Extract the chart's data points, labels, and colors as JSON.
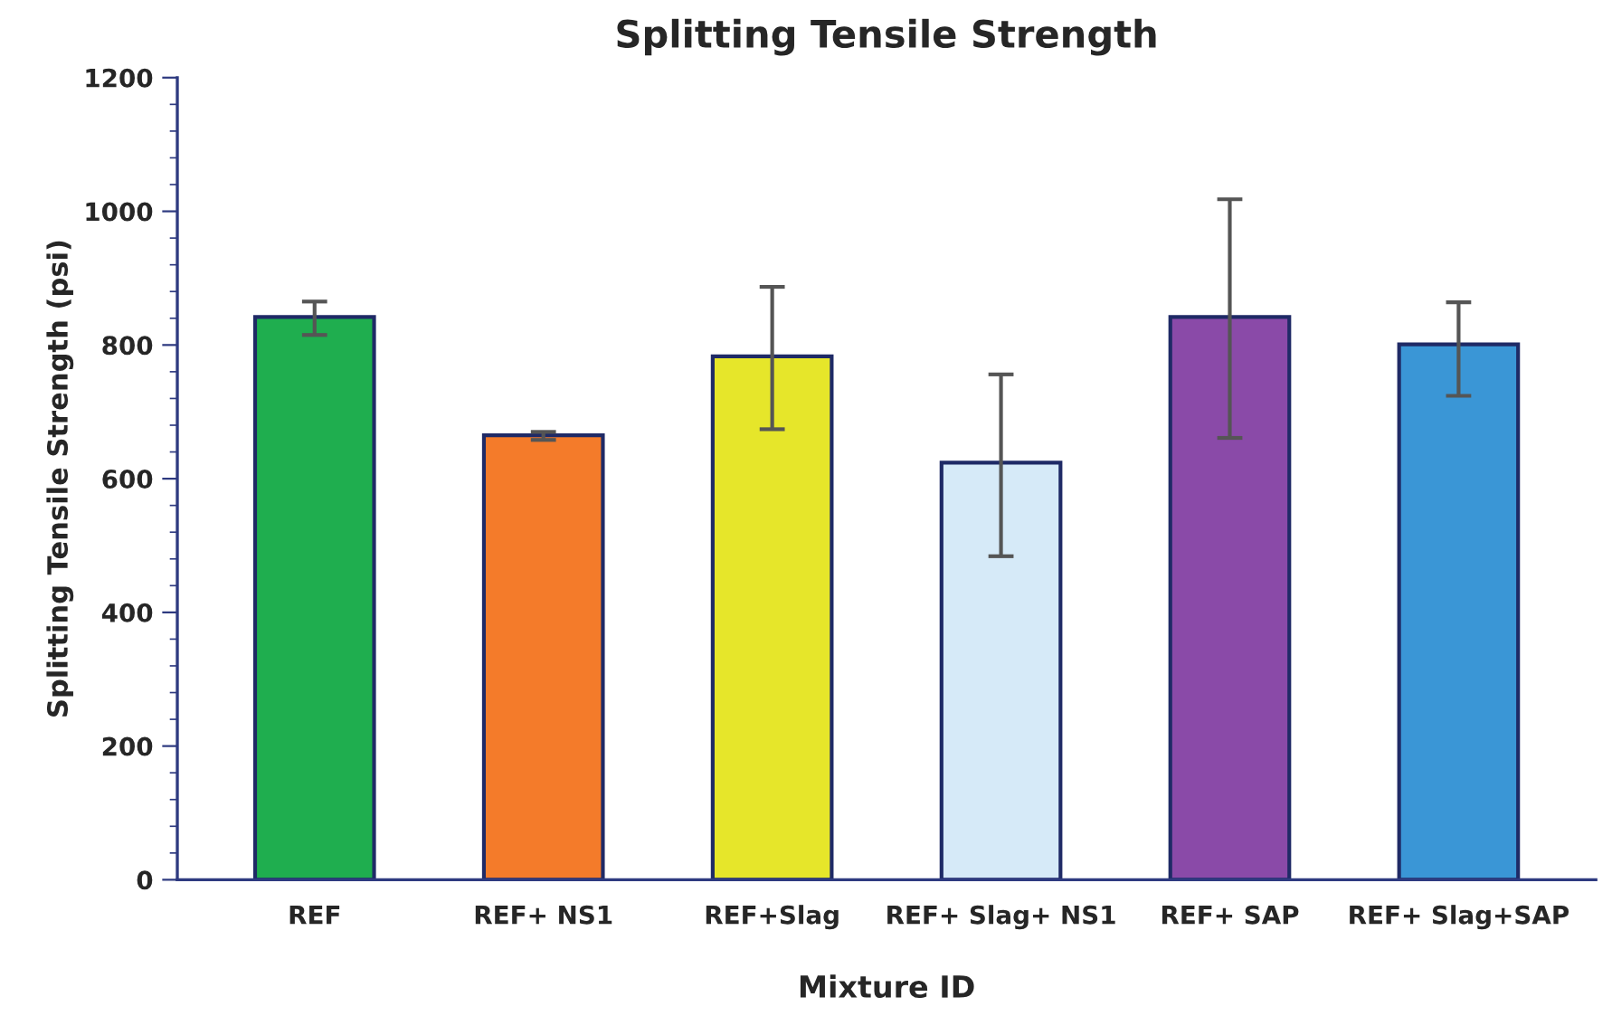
{
  "chart_data": {
    "type": "bar",
    "title": "Splitting Tensile Strength",
    "xlabel": "Mixture ID",
    "ylabel": "Splitting Tensile Strength (psi)",
    "categories": [
      "REF",
      "REF+ NS1",
      "REF+Slag",
      "REF+ Slag+ NS1",
      "REF+ SAP",
      "REF+ Slag+SAP"
    ],
    "values": [
      842,
      665,
      783,
      624,
      842,
      801
    ],
    "errors": [
      [
        815,
        865
      ],
      [
        658,
        670
      ],
      [
        674,
        887
      ],
      [
        484,
        756
      ],
      [
        661,
        1018
      ],
      [
        724,
        864
      ]
    ],
    "colors": [
      "#1fae4f",
      "#f47b2a",
      "#e6e62a",
      "#d6eaf8",
      "#8a4aa8",
      "#3a96d6"
    ],
    "ylim": [
      0,
      1200
    ],
    "yticks": [
      0,
      200,
      400,
      600,
      800,
      1000,
      1200
    ],
    "grid": false
  }
}
